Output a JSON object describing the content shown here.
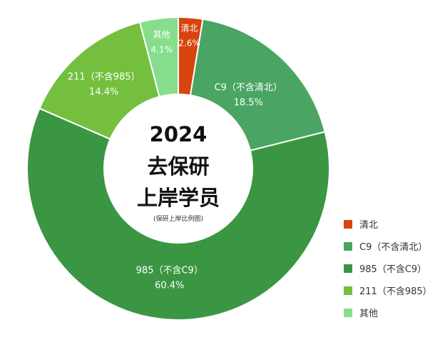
{
  "chart_data": {
    "type": "pie",
    "title": "2024\n去保研\n上岸学员",
    "subtitle": "(保研上岸比例图)",
    "slices": [
      {
        "label": "清北",
        "value": 2.6,
        "value_label": "2.6%",
        "color": "#d7440f",
        "legend": "清北"
      },
      {
        "label": "C9（不含清北）",
        "value": 18.5,
        "value_label": "18.5%",
        "color": "#4aa464",
        "legend": "C9（不含清北）"
      },
      {
        "label": "985（不含C9）",
        "value": 60.4,
        "value_label": "60.4%",
        "color": "#3a9642",
        "legend": "985（不含C9）"
      },
      {
        "label": "211（不含985）",
        "value": 14.4,
        "value_label": "14.4%",
        "color": "#74bf3e",
        "legend": "211（不含985）"
      },
      {
        "label": "其他",
        "value": 4.1,
        "value_label": "4.1%",
        "color": "#86de8c",
        "legend": "其他"
      }
    ],
    "legend_position": "bottom-right"
  }
}
